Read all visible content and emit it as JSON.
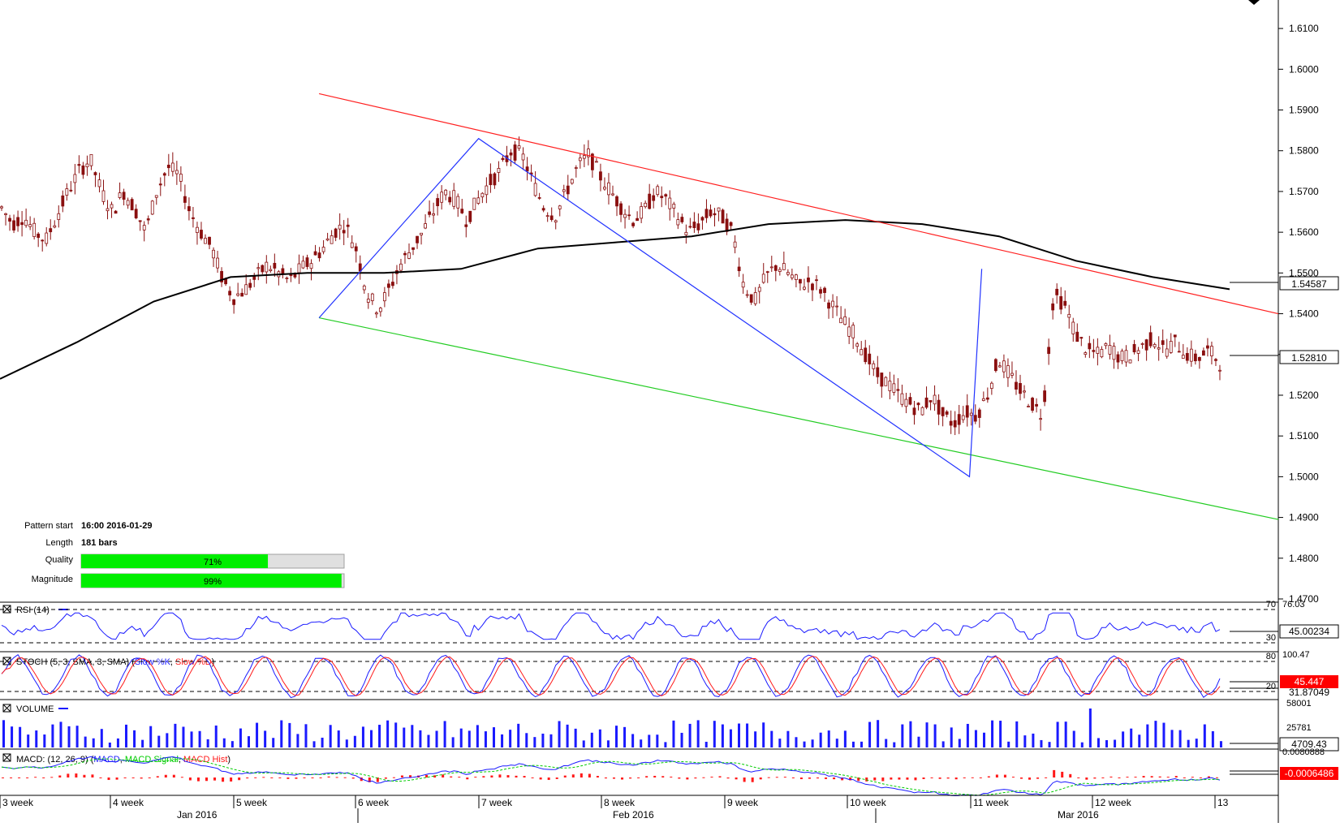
{
  "price_axis": {
    "ticks": [
      "1.6100",
      "1.6000",
      "1.5900",
      "1.5800",
      "1.5700",
      "1.5600",
      "1.5500",
      "1.5400",
      "1.5300",
      "1.5200",
      "1.5100",
      "1.5000",
      "1.4900",
      "1.4800",
      "1.4700"
    ],
    "ma_label": "1.54587",
    "last_label": "1.52810"
  },
  "pattern_info": {
    "start_label": "Pattern start",
    "start_value": "16:00 2016-01-29",
    "length_label": "Length",
    "length_value": "181 bars",
    "quality_label": "Quality",
    "quality_text": "71%",
    "quality_pct": 71,
    "magnitude_label": "Magnitude",
    "magnitude_text": "99%",
    "magnitude_pct": 99
  },
  "rsi": {
    "title": "RSI (14)",
    "level_high": "70",
    "level_low": "30",
    "max_label": "76.03",
    "value": "45.00234"
  },
  "stoch": {
    "title_main": "STOCH (5, 3, SMA, 3, SMA) (",
    "k_label": "Slow %K",
    "d_label": "Slow %D",
    "title_end": ")",
    "level_high": "80",
    "level_low": "20",
    "max_label": "100.47",
    "value_k": "45.447",
    "value_d": "31.87049"
  },
  "volume": {
    "title": "VOLUME",
    "max_label": "58001",
    "mid_label": "25781",
    "value": "4709.43"
  },
  "macd": {
    "title_main": "MACD: (12, 26, 9) (",
    "macd_label": "MACD",
    "signal_label": "MACD Signal",
    "hist_label": "MACD Hist",
    "title_end": ")",
    "max_label": "0.0080888",
    "value": "-0.0006486"
  },
  "time_axis": {
    "weeks": [
      "3 week",
      "4 week",
      "5 week",
      "6 week",
      "7 week",
      "8 week",
      "9 week",
      "10 week",
      "11 week",
      "12 week",
      "13"
    ],
    "months": [
      "Jan 2016",
      "Feb 2016",
      "Mar 2016"
    ]
  },
  "colors": {
    "candle": "#8a0f0f",
    "ma": "#000000",
    "resistance": "#ff2020",
    "support": "#22cc22",
    "pattern": "#2233ff",
    "bar_fill": "#00ee00",
    "rsi_line": "#1a1aff",
    "stoch_k": "#1a1aff",
    "stoch_d": "#ff1a1a",
    "volume": "#1a1aff",
    "macd_line": "#1a1aff",
    "macd_signal": "#00cc00",
    "macd_hist": "#ff1a1a",
    "last_box": "#ff0000"
  },
  "chart_data": {
    "type": "candlestick",
    "title": "",
    "y_range": [
      1.47,
      1.615
    ],
    "overlays": {
      "moving_average": [
        1.524,
        1.533,
        1.543,
        1.549,
        1.55,
        1.55,
        1.551,
        1.556,
        1.5575,
        1.559,
        1.562,
        1.563,
        1.562,
        1.559,
        1.553,
        1.549,
        1.546
      ],
      "resistance_line": [
        [
          0.26,
          1.594
        ],
        [
          1.0,
          1.54
        ]
      ],
      "support_line": [
        [
          0.26,
          1.539
        ],
        [
          1.0,
          1.4895
        ]
      ],
      "pattern_points": [
        1.539,
        1.583,
        1.5,
        1.551
      ]
    },
    "price_path": [
      1.566,
      1.562,
      1.564,
      1.56,
      1.558,
      1.564,
      1.57,
      1.575,
      1.578,
      1.57,
      1.565,
      1.57,
      1.566,
      1.56,
      1.57,
      1.576,
      1.574,
      1.565,
      1.56,
      1.556,
      1.548,
      1.544,
      1.546,
      1.549,
      1.552,
      1.55,
      1.548,
      1.551,
      1.553,
      1.556,
      1.56,
      1.562,
      1.556,
      1.545,
      1.541,
      1.546,
      1.552,
      1.556,
      1.56,
      1.565,
      1.57,
      1.568,
      1.563,
      1.568,
      1.572,
      1.575,
      1.58,
      1.579,
      1.572,
      1.566,
      1.564,
      1.57,
      1.576,
      1.579,
      1.574,
      1.57,
      1.566,
      1.563,
      1.565,
      1.57,
      1.568,
      1.564,
      1.56,
      1.562,
      1.565,
      1.564,
      1.56,
      1.547,
      1.543,
      1.549,
      1.552,
      1.55,
      1.547,
      1.548,
      1.546,
      1.542,
      1.538,
      1.535,
      1.53,
      1.525,
      1.523,
      1.52,
      1.518,
      1.516,
      1.52,
      1.515,
      1.513,
      1.516,
      1.515,
      1.52,
      1.529,
      1.525,
      1.521,
      1.518,
      1.515,
      1.545,
      1.542,
      1.535,
      1.531,
      1.53,
      1.532,
      1.529,
      1.53,
      1.532,
      1.534,
      1.531,
      1.533,
      1.53,
      1.529,
      1.531,
      1.528
    ],
    "rsi_range": [
      0,
      100
    ],
    "volume_range": [
      0,
      58001
    ],
    "macd_range": [
      -0.008,
      0.008
    ]
  }
}
